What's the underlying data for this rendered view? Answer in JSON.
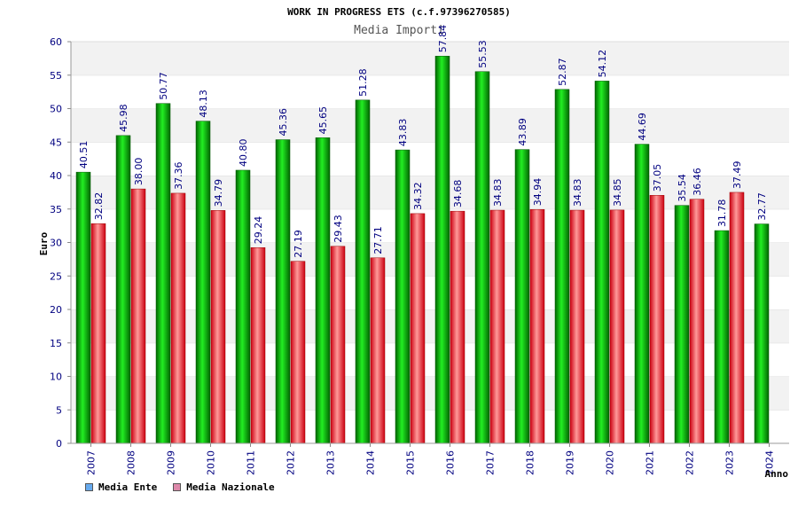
{
  "chart_data": {
    "type": "bar",
    "title": "WORK IN PROGRESS ETS (c.f.97396270585)",
    "subtitle": "Media Importi",
    "xlabel": "Anno",
    "ylabel": "Euro",
    "ylim": [
      0,
      60
    ],
    "yticks": [
      "0",
      "5",
      "10",
      "15",
      "20",
      "25",
      "30",
      "35",
      "40",
      "45",
      "50",
      "55",
      "60"
    ],
    "categories": [
      "2007",
      "2008",
      "2009",
      "2010",
      "2011",
      "2012",
      "2013",
      "2014",
      "2015",
      "2016",
      "2017",
      "2018",
      "2019",
      "2020",
      "2021",
      "2022",
      "2023",
      "2024"
    ],
    "series": [
      {
        "name": "Media Ente",
        "values": [
          40.51,
          45.98,
          50.77,
          48.13,
          40.8,
          45.36,
          45.65,
          51.28,
          43.83,
          57.84,
          55.53,
          43.89,
          52.87,
          54.12,
          44.69,
          35.54,
          31.78,
          32.77
        ],
        "labels": [
          "40.51",
          "45.98",
          "50.77",
          "48.13",
          "40.80",
          "45.36",
          "45.65",
          "51.28",
          "43.83",
          "57.84",
          "55.53",
          "43.89",
          "52.87",
          "54.12",
          "44.69",
          "35.54",
          "31.78",
          "32.77"
        ],
        "color": "#00c000",
        "legend_color": "#66aaee"
      },
      {
        "name": "Media Nazionale",
        "values": [
          32.82,
          38.0,
          37.36,
          34.79,
          29.24,
          27.19,
          29.43,
          27.71,
          34.32,
          34.68,
          34.83,
          34.94,
          34.83,
          34.85,
          37.05,
          36.46,
          37.49,
          null
        ],
        "labels": [
          "32.82",
          "38.00",
          "37.36",
          "34.79",
          "29.24",
          "27.19",
          "29.43",
          "27.71",
          "34.32",
          "34.68",
          "34.83",
          "34.94",
          "34.83",
          "34.85",
          "37.05",
          "36.46",
          "37.49",
          null
        ],
        "color": "#ee2233",
        "legend_color": "#dd88aa"
      }
    ],
    "grid": "horizontal bands",
    "legend_position": "bottom-left"
  }
}
